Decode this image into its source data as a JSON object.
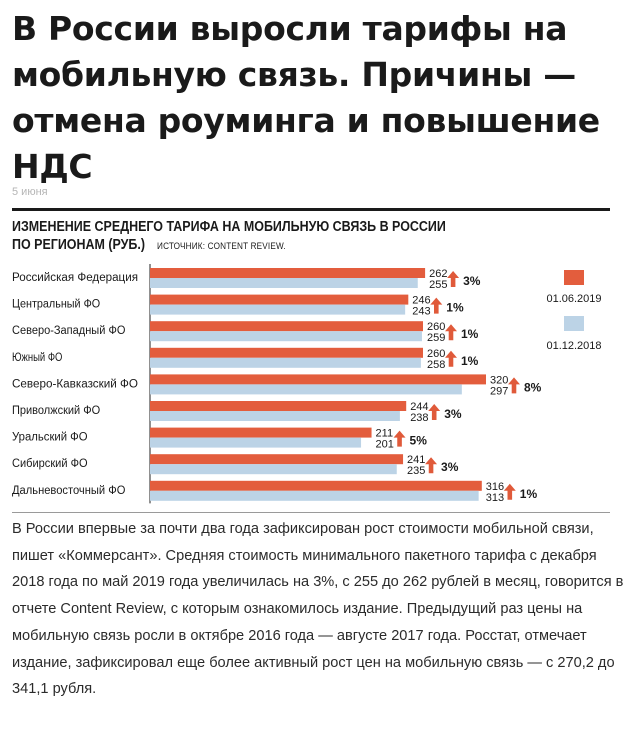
{
  "headline": "В России выросли тарифы на мобильную связь. Причины — отмена роуминга и повышение НДС",
  "date": "5 июня",
  "article_text": "В России впервые за почти два года зафиксирован рост стоимости мобильной связи, пишет «Коммерсант». Средняя стоимость минимального пакетного тарифа с декабря 2018 года по май 2019 года увеличилась на 3%, с 255 до 262 рублей в месяц, говорится в отчете Content Review, с которым ознакомилось издание. Предыдущий раз цены на мобильную связь росли в октябре 2016 года — августе 2017 года. Росстат, отмечает издание, зафиксировал еще более активный рост цен на мобильную связь — с 270,2 до 341,1 рубля.",
  "colors": {
    "series_june": "#e35d3d",
    "series_dec": "#bcd3e6",
    "arrow": "#e05a3a",
    "rule": "#1a1a1a"
  },
  "chart_data": {
    "type": "bar",
    "orientation": "horizontal",
    "title_line1": "ИЗМЕНЕНИЕ СРЕДНЕГО ТАРИФА НА МОБИЛЬНУЮ СВЯЗЬ В РОССИИ",
    "title_line2": "ПО РЕГИОНАМ (РУБ.)",
    "source": "ИСТОЧНИК: CONTENT REVIEW.",
    "legend_position": "right",
    "grid": false,
    "categories": [
      "Российская Федерация",
      "Центральный ФО",
      "Северо-Западный ФО",
      "Южный ФО",
      "Северо-Кавказский ФО",
      "Приволжский ФО",
      "Уральский ФО",
      "Сибирский ФО",
      "Дальневосточный ФО"
    ],
    "series": [
      {
        "name": "01.06.2019",
        "values": [
          262,
          246,
          260,
          260,
          320,
          244,
          211,
          241,
          316
        ]
      },
      {
        "name": "01.12.2018",
        "values": [
          255,
          243,
          259,
          258,
          297,
          238,
          201,
          235,
          313
        ]
      }
    ],
    "changes": [
      "3%",
      "1%",
      "1%",
      "1%",
      "8%",
      "3%",
      "5%",
      "3%",
      "1%"
    ],
    "xlim": [
      0,
      320
    ]
  }
}
